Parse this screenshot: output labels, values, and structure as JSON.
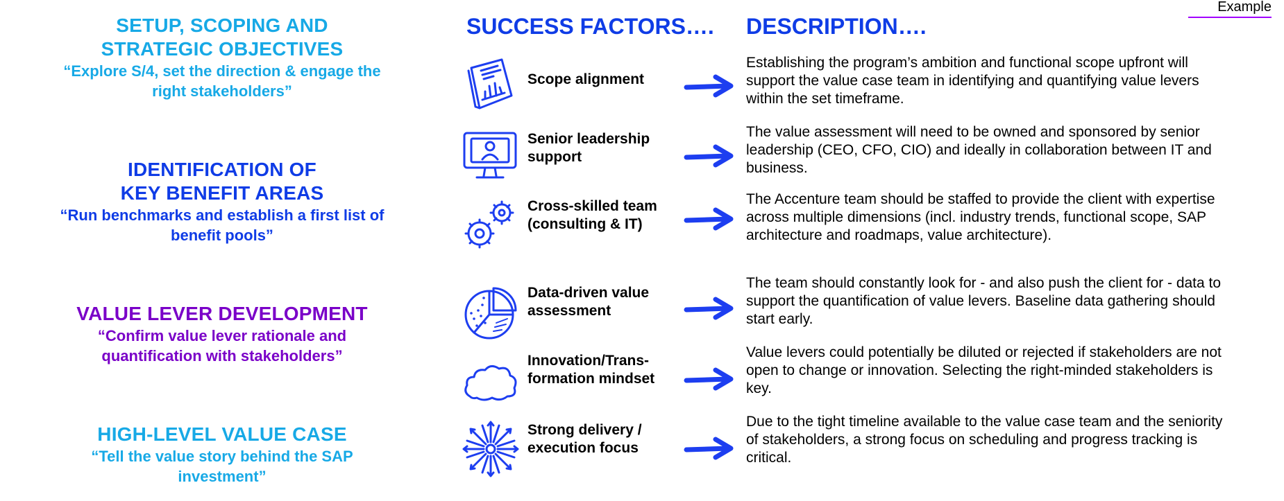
{
  "tag": "Example",
  "colors": {
    "cyan": "#17a9e6",
    "blue": "#0f3ce6",
    "purple": "#7a00c8",
    "ink": "#1d3ef0"
  },
  "stages": [
    {
      "title_lines": [
        "SETUP, SCOPING AND",
        "STRATEGIC OBJECTIVES"
      ],
      "quote": "“Explore S/4, set the direction & engage the right stakeholders”"
    },
    {
      "title_lines": [
        "IDENTIFICATION OF",
        "KEY BENEFIT AREAS"
      ],
      "quote": "“Run benchmarks and establish a first list of benefit pools”"
    },
    {
      "title_lines": [
        "VALUE LEVER DEVELOPMENT"
      ],
      "quote": "“Confirm value lever rationale and quantification with stakeholders”"
    },
    {
      "title_lines": [
        "HIGH-LEVEL VALUE CASE"
      ],
      "quote": "“Tell the value story behind the SAP investment”"
    }
  ],
  "headers": {
    "factors": "SUCCESS FACTORS….",
    "description": "DESCRIPTION…."
  },
  "rows": [
    {
      "icon": "document-chart-icon",
      "factor_lines": [
        "Scope alignment"
      ],
      "description": "Establishing the program’s ambition and functional scope upfront will support the value case team in identifying and quantifying value levers within the set timeframe."
    },
    {
      "icon": "monitor-person-icon",
      "factor_lines": [
        "Senior leadership",
        "support"
      ],
      "description": "The value assessment will need to be owned and sponsored by senior leadership (CEO, CFO, CIO) and ideally in collaboration between IT and business."
    },
    {
      "icon": "gears-icon",
      "factor_lines": [
        "Cross-skilled team",
        "(consulting & IT)"
      ],
      "description": "The Accenture team should be staffed to provide the client with expertise across multiple dimensions (incl. industry trends, functional scope, SAP architecture and roadmaps, value architecture)."
    },
    {
      "icon": "pie-chart-icon",
      "factor_lines": [
        "Data-driven value",
        "assessment"
      ],
      "description": "The team should constantly look for - and also push the client for - data to support the quantification of value levers. Baseline data gathering should start early."
    },
    {
      "icon": "cloud-icon",
      "factor_lines": [
        "Innovation/Trans-",
        "formation mindset"
      ],
      "description": "Value levers could potentially be diluted or rejected if stakeholders are not open to change or innovation. Selecting the right-minded stakeholders is key."
    },
    {
      "icon": "starburst-arrows-icon",
      "factor_lines": [
        "Strong delivery /",
        "execution focus"
      ],
      "description": "Due to the tight timeline available to the value case team  and the seniority of stakeholders, a strong focus on scheduling and progress tracking is critical."
    }
  ]
}
